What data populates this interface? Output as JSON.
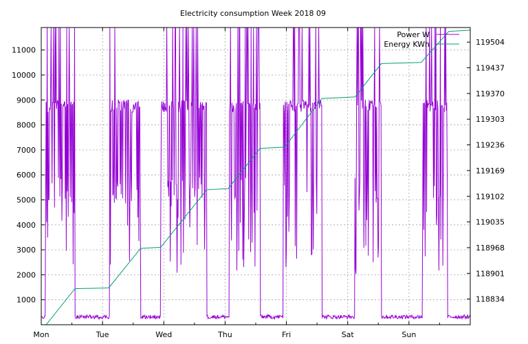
{
  "chart_data": {
    "type": "line",
    "title": "Electricity consumption Week 2018 09",
    "x": {
      "ticks": [
        "Mon",
        "Tue",
        "Wed",
        "Thu",
        "Fri",
        "Sat",
        "Sun"
      ],
      "range_days": [
        0,
        7
      ]
    },
    "y_left": {
      "range": [
        0,
        11900
      ],
      "ticks": [
        1000,
        2000,
        3000,
        4000,
        5000,
        6000,
        7000,
        8000,
        9000,
        10000,
        11000
      ]
    },
    "y_right": {
      "range": [
        118767,
        119542
      ],
      "ticks": [
        "118834",
        "118901",
        "118968",
        "119035",
        "119102",
        "119169",
        "119236",
        "119303",
        "119370",
        "119437",
        "119504"
      ]
    },
    "grid": true,
    "legend": {
      "placement": "top-right",
      "entries": [
        {
          "label": "Power W",
          "color": "#9400d3"
        },
        {
          "label": "Energy KWh",
          "color": "#009e73"
        }
      ]
    },
    "series": [
      {
        "name": "Power W",
        "axis": "left",
        "color": "#9400d3",
        "baseline_w": 300,
        "plateau_w": 9000,
        "high_periods_days": [
          [
            0.07,
            0.55
          ],
          [
            1.12,
            1.62
          ],
          [
            1.95,
            2.7
          ],
          [
            3.07,
            3.57
          ],
          [
            3.95,
            4.58
          ],
          [
            5.12,
            5.55
          ],
          [
            6.22,
            6.63
          ]
        ]
      },
      {
        "name": "Energy KWh",
        "axis": "right",
        "color": "#009e73",
        "points": [
          [
            0.0,
            118767
          ],
          [
            0.08,
            118767
          ],
          [
            0.55,
            118861
          ],
          [
            1.1,
            118863
          ],
          [
            1.62,
            118966
          ],
          [
            1.95,
            118969
          ],
          [
            2.7,
            119119
          ],
          [
            3.05,
            119122
          ],
          [
            3.57,
            119227
          ],
          [
            3.97,
            119230
          ],
          [
            4.58,
            119357
          ],
          [
            5.12,
            119361
          ],
          [
            5.55,
            119448
          ],
          [
            6.2,
            119451
          ],
          [
            6.65,
            119532
          ],
          [
            7.0,
            119535
          ]
        ]
      }
    ]
  }
}
